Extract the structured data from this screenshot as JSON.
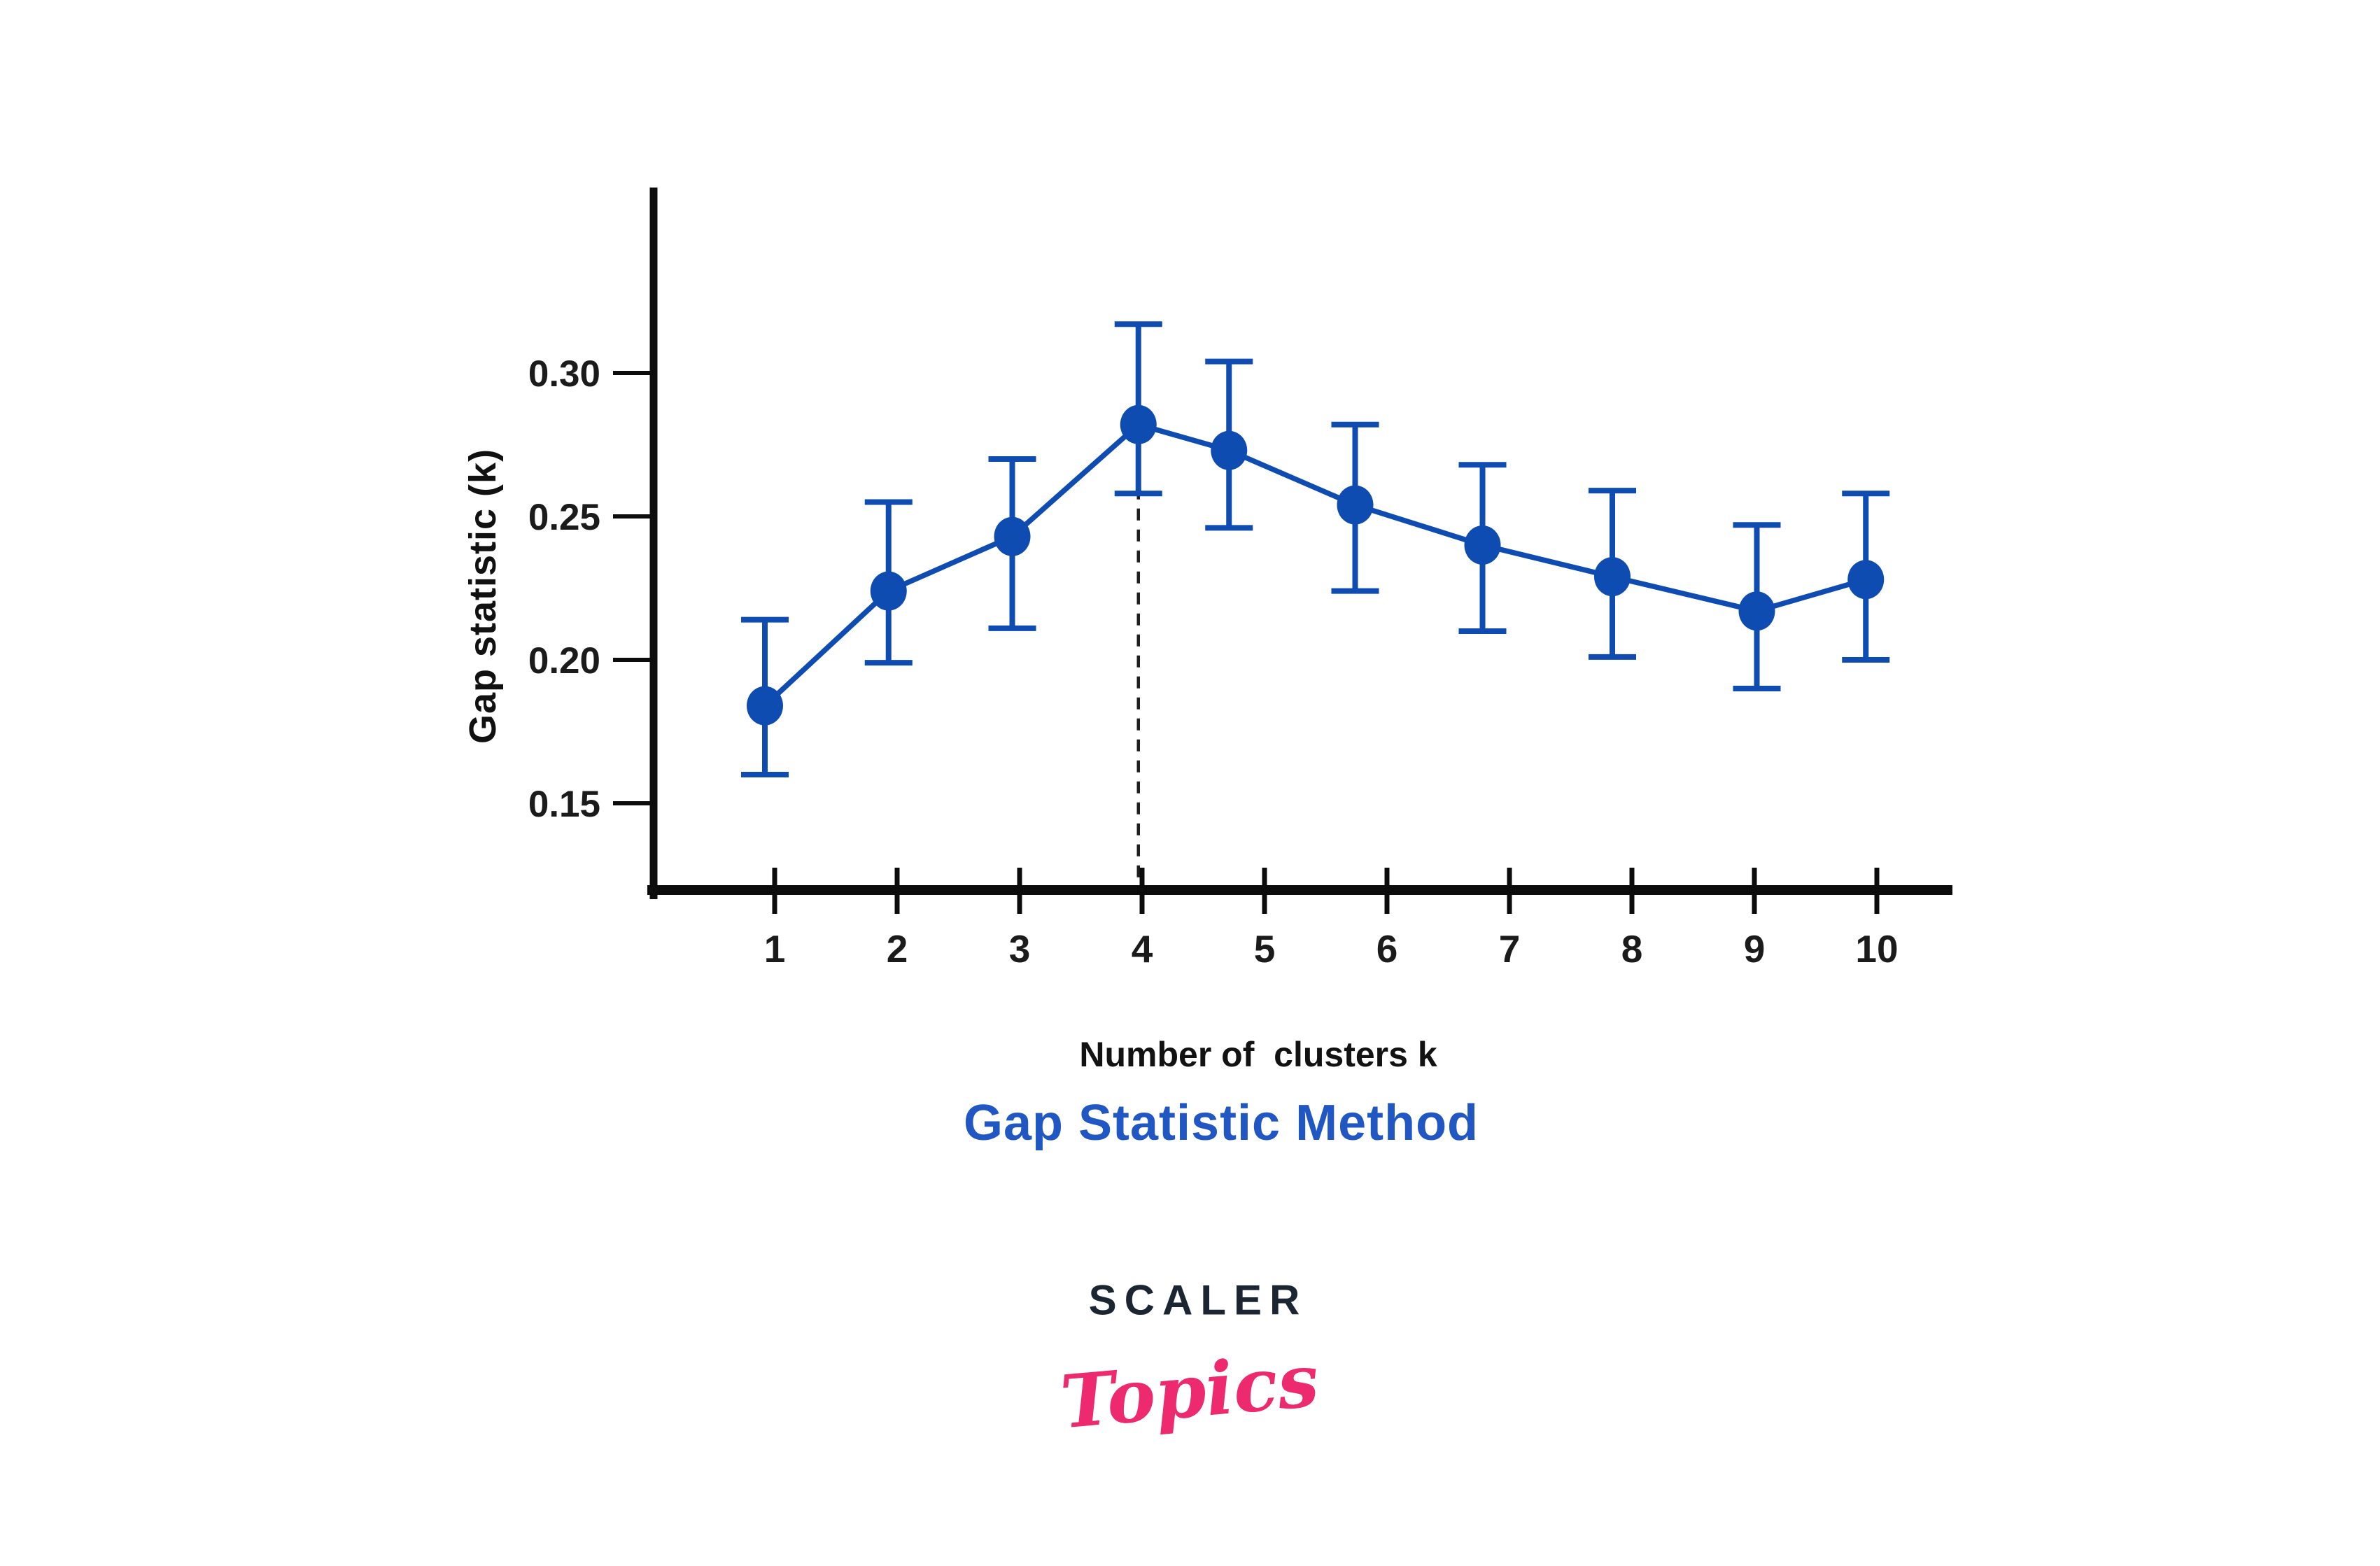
{
  "page": {
    "background": "#ffffff"
  },
  "chart_data": {
    "type": "line",
    "title": "Gap Statistic Method",
    "xlabel": "Number of  clusters k",
    "ylabel": "Gap statistic (k)",
    "x_axis": {
      "tick_values": [
        1,
        2,
        3,
        4,
        5,
        6,
        7,
        8,
        9,
        10
      ],
      "tick_labels": [
        "1",
        "2",
        "3",
        "4",
        "5",
        "6",
        "7",
        "8",
        "9",
        "10"
      ]
    },
    "y_axis": {
      "tick_values": [
        0.15,
        0.2,
        0.25,
        0.3
      ],
      "tick_labels": [
        "0.15",
        "0.20",
        "0.25",
        "0.30"
      ],
      "range_shown": [
        0.12,
        0.365
      ]
    },
    "grid": "off",
    "legend": "none",
    "series": [
      {
        "name": "Gap statistic",
        "x": [
          0.92,
          1.93,
          2.94,
          3.97,
          4.71,
          5.74,
          6.78,
          7.84,
          9.02,
          9.91
        ],
        "k": [
          1,
          2,
          3,
          4,
          5,
          6,
          7,
          8,
          9,
          10
        ],
        "y": [
          0.184,
          0.224,
          0.243,
          0.282,
          0.273,
          0.254,
          0.24,
          0.229,
          0.217,
          0.228
        ],
        "err_low": [
          0.16,
          0.199,
          0.211,
          0.258,
          0.246,
          0.224,
          0.21,
          0.201,
          0.19,
          0.2
        ],
        "err_high": [
          0.214,
          0.255,
          0.27,
          0.317,
          0.304,
          0.282,
          0.268,
          0.259,
          0.247,
          0.258
        ]
      }
    ],
    "annotations": {
      "optimal_k": 4,
      "dashed_line_x": 3.97
    },
    "colors": {
      "series": "#0e4cb2",
      "title": "#2157c3",
      "axis": "#0c0c0c",
      "tick_label": "#1b1b1b",
      "dashed_line": "#1f1f1f"
    }
  },
  "branding": {
    "scaler_label": "SCALER",
    "topics_label": "Topics",
    "scaler_color": "#1c2532",
    "topics_color": "#ec2a6d"
  }
}
